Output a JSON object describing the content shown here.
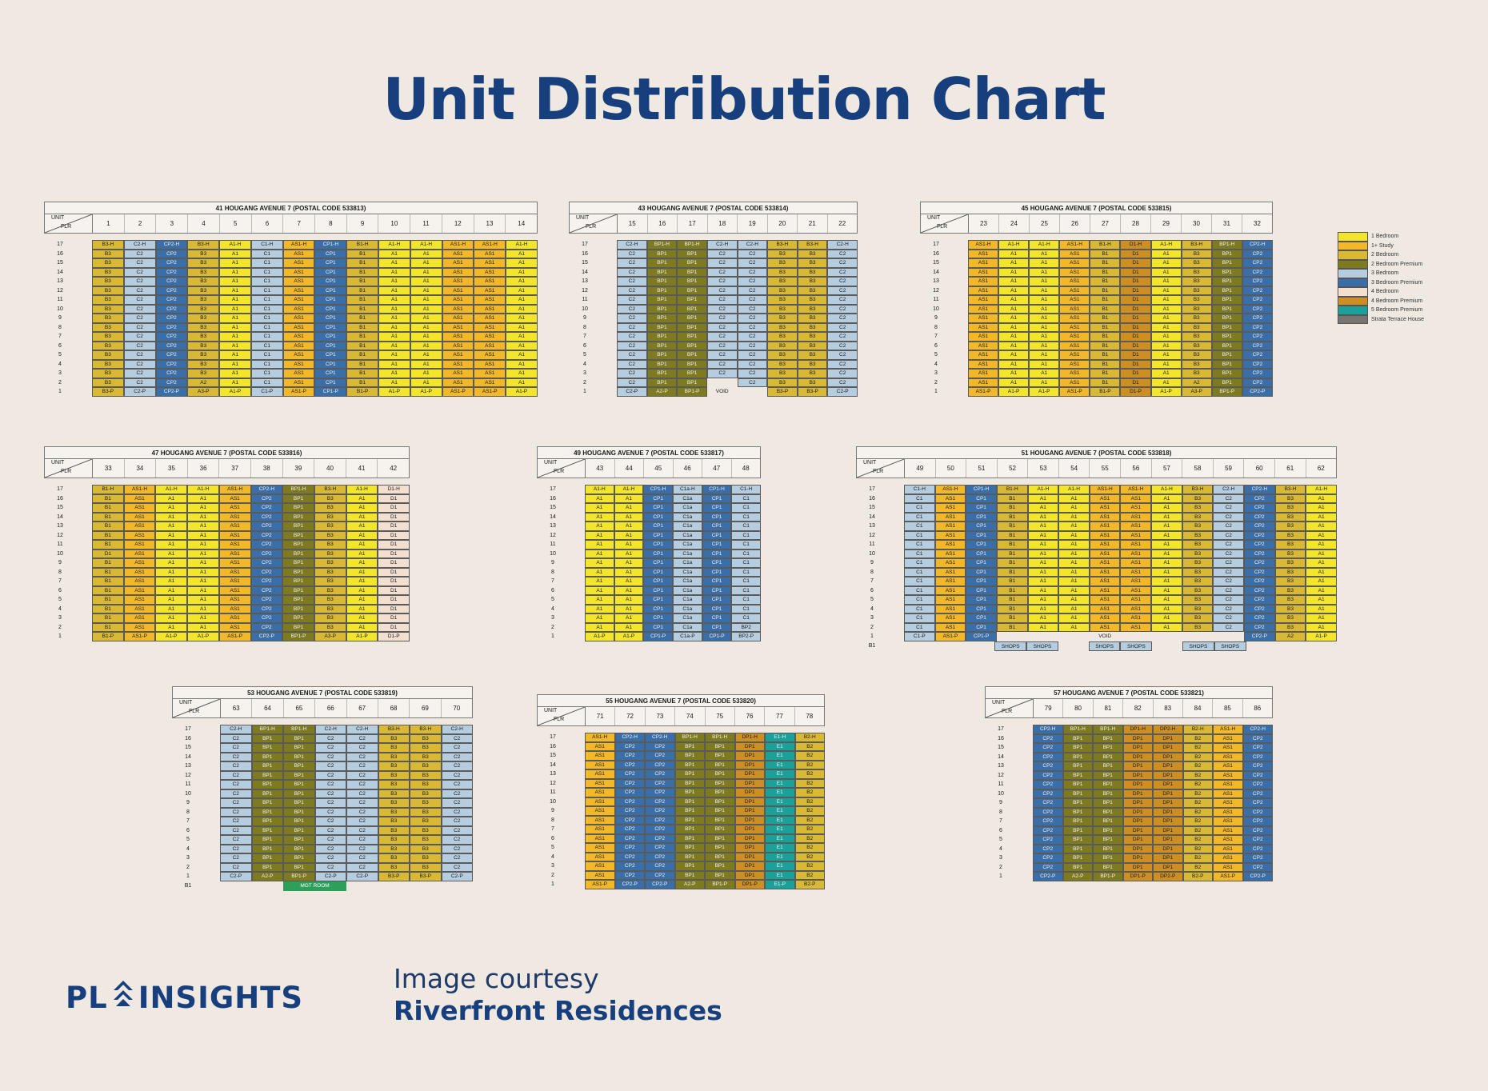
{
  "page": {
    "title": "Unit Distribution Chart",
    "brand": "PL INSIGHTS",
    "courtesy_line1": "Image courtesy",
    "courtesy_line2": "Riverfront Residences"
  },
  "colors": {
    "1BR": "#f3e529",
    "1ST": "#f2b827",
    "2BR": "#d9b833",
    "2BP": "#7e7a20",
    "3BR": "#b6cde0",
    "3BP": "#3a6ea8",
    "4BR": "#f3dfd0",
    "4BP": "#cd8f22",
    "5BP": "#1aa19a",
    "STH": "#787471",
    "VOID": "#efe9e1",
    "MGT": "#2e9e5b"
  },
  "chart_data": {
    "type": "table",
    "title": "Unit Distribution Chart",
    "corner_label_unit": "UNIT",
    "corner_label_floor": "FLR",
    "legend": [
      {
        "key": "1BR",
        "label": "1 Bedroom"
      },
      {
        "key": "1ST",
        "label": "1+ Study"
      },
      {
        "key": "2BR",
        "label": "2 Bedroom"
      },
      {
        "key": "2BP",
        "label": "2 Bedroom Premium"
      },
      {
        "key": "3BR",
        "label": "3 Bedroom"
      },
      {
        "key": "3BP",
        "label": "3 Bedroom Premium"
      },
      {
        "key": "4BR",
        "label": "4 Bedroom"
      },
      {
        "key": "4BP",
        "label": "4 Bedroom Premium"
      },
      {
        "key": "5BP",
        "label": "5 Bedroom Premium"
      },
      {
        "key": "STH",
        "label": "Strata Terrace House"
      }
    ],
    "blocks": [
      {
        "name": "41 HOUGANG AVENUE 7 (POSTAL CODE 533813)",
        "units": [
          "1",
          "2",
          "3",
          "4",
          "5",
          "6",
          "7",
          "8",
          "9",
          "10",
          "11",
          "12",
          "13",
          "14"
        ],
        "top": [
          "B3-H",
          "C2-H",
          "CP2-H",
          "B3-H",
          "A1-H",
          "C1-H",
          "AS1-H",
          "CP1-H",
          "B1-H",
          "A1-H",
          "A1-H",
          "AS1-H",
          "AS1-H",
          "A1-H"
        ],
        "typical": [
          "B3",
          "C2",
          "CP2",
          "B3",
          "A1",
          "C1",
          "AS1",
          "CP1",
          "B1",
          "A1",
          "A1",
          "AS1",
          "AS1",
          "A1"
        ],
        "bottom": [
          "B3-P",
          "C2-P",
          "CP2-P",
          "A3-P",
          "A1-P",
          "C1-P",
          "AS1-P",
          "CP1-P",
          "B1-P",
          "A1-P",
          "A1-P",
          "AS1-P",
          "AS1-P",
          "A1-P"
        ],
        "colors": [
          "2BR",
          "3BR",
          "3BP",
          "2BR",
          "1BR",
          "3BR",
          "1ST",
          "3BP",
          "2BR",
          "1BR",
          "1BR",
          "1ST",
          "1ST",
          "1BR"
        ],
        "overrides": [
          {
            "floor": 2,
            "col": 3,
            "v": "A2"
          }
        ]
      },
      {
        "name": "43 HOUGANG AVENUE 7 (POSTAL CODE 533814)",
        "units": [
          "15",
          "16",
          "17",
          "18",
          "19",
          "20",
          "21",
          "22"
        ],
        "top": [
          "C2-H",
          "BP1-H",
          "BP1-H",
          "C2-H",
          "C2-H",
          "B3-H",
          "B3-H",
          "C2-H"
        ],
        "typical": [
          "C2",
          "BP1",
          "BP1",
          "C2",
          "C2",
          "B3",
          "B3",
          "C2"
        ],
        "bottom": [
          "C2-P",
          "A2-P",
          "BP1-P",
          "VOID",
          "",
          "B3-P",
          "B3-P",
          "C2-P"
        ],
        "colors": [
          "3BR",
          "2BP",
          "2BP",
          "3BR",
          "3BR",
          "2BR",
          "2BR",
          "3BR"
        ],
        "overrides": [
          {
            "floor": 2,
            "col": 3,
            "v": ""
          }
        ]
      },
      {
        "name": "45 HOUGANG AVENUE 7 (POSTAL CODE 533815)",
        "units": [
          "23",
          "24",
          "25",
          "26",
          "27",
          "28",
          "29",
          "30",
          "31",
          "32"
        ],
        "top": [
          "AS1-H",
          "A1-H",
          "A1-H",
          "AS1-H",
          "B1-H",
          "D1-H",
          "A1-H",
          "B3-H",
          "BP1-H",
          "CP2-H"
        ],
        "typical": [
          "AS1",
          "A1",
          "A1",
          "AS1",
          "B1",
          "D1",
          "A1",
          "B3",
          "BP1",
          "CP2"
        ],
        "bottom": [
          "AS1-P",
          "A1-P",
          "A1-P",
          "AS1-P",
          "B1-P",
          "D1-P",
          "A1-P",
          "A3-P",
          "BP1-P",
          "CP2-P"
        ],
        "colors": [
          "1ST",
          "1BR",
          "1BR",
          "1ST",
          "2BR",
          "4BP",
          "1BR",
          "2BR",
          "2BP",
          "3BP"
        ],
        "overrides": [
          {
            "floor": 2,
            "col": 7,
            "v": "A2"
          }
        ]
      },
      {
        "name": "47 HOUGANG AVENUE 7 (POSTAL CODE 533816)",
        "units": [
          "33",
          "34",
          "35",
          "36",
          "37",
          "38",
          "39",
          "40",
          "41",
          "42"
        ],
        "top": [
          "B1-H",
          "AS1-H",
          "A1-H",
          "A1-H",
          "AS1-H",
          "CP2-H",
          "BP1-H",
          "B3-H",
          "A1-H",
          "D1-H"
        ],
        "typical": [
          "B1",
          "AS1",
          "A1",
          "A1",
          "AS1",
          "CP2",
          "BP1",
          "B3",
          "A1",
          "D1"
        ],
        "bottom": [
          "B1-P",
          "AS1-P",
          "A1-P",
          "A1-P",
          "AS1-P",
          "CP2-P",
          "BP1-P",
          "A3-P",
          "A1-P",
          "D1-P"
        ],
        "colors": [
          "2BR",
          "1ST",
          "1BR",
          "1BR",
          "1ST",
          "3BP",
          "2BP",
          "2BR",
          "1BR",
          "4BR"
        ],
        "overrides": [
          {
            "floor": 10,
            "col": 0,
            "v": "D1"
          }
        ]
      },
      {
        "name": "49 HOUGANG AVENUE 7 (POSTAL CODE 533817)",
        "units": [
          "43",
          "44",
          "45",
          "46",
          "47",
          "48"
        ],
        "top": [
          "A1-H",
          "A1-H",
          "CP1-H",
          "C1a-H",
          "CP1-H",
          "C1-H"
        ],
        "typical": [
          "A1",
          "A1",
          "CP1",
          "C1a",
          "CP1",
          "C1"
        ],
        "bottom": [
          "A1-P",
          "A1-P",
          "CP1-P",
          "C1a-P",
          "CP1-P",
          "BP2-P"
        ],
        "colors": [
          "1BR",
          "1BR",
          "3BP",
          "3BR",
          "3BP",
          "3BR"
        ],
        "overrides": [
          {
            "floor": 2,
            "col": 5,
            "v": "BP2"
          }
        ]
      },
      {
        "name": "51 HOUGANG AVENUE 7 (POSTAL CODE 533818)",
        "units": [
          "49",
          "50",
          "51",
          "52",
          "53",
          "54",
          "55",
          "56",
          "57",
          "58",
          "59",
          "60",
          "61",
          "62"
        ],
        "top": [
          "C1-H",
          "AS1-H",
          "CP1-H",
          "B1-H",
          "A1-H",
          "A1-H",
          "AS1-H",
          "AS1-H",
          "A1-H",
          "B3-H",
          "C2-H",
          "CP2-H",
          "B3-H",
          "A1-H"
        ],
        "typical": [
          "C1",
          "AS1",
          "CP1",
          "B1",
          "A1",
          "A1",
          "AS1",
          "AS1",
          "A1",
          "B3",
          "C2",
          "CP2",
          "B3",
          "A1"
        ],
        "bottom": [
          "C1-P",
          "AS1-P",
          "CP1-P",
          "",
          "",
          "",
          "VOID",
          "",
          "",
          "",
          "",
          "CP2-P",
          "A2",
          "A1-P"
        ],
        "colors": [
          "3BR",
          "1ST",
          "3BP",
          "2BR",
          "1BR",
          "1BR",
          "1ST",
          "1ST",
          "1BR",
          "2BR",
          "3BR",
          "3BP",
          "2BR",
          "1BR"
        ],
        "overrides": [],
        "extra_label": "B1",
        "extra": [
          "",
          "",
          "",
          "SHOPS",
          "SHOPS",
          "",
          "SHOPS",
          "SHOPS",
          "",
          "SHOPS",
          "SHOPS",
          "",
          "",
          ""
        ]
      },
      {
        "name": "53 HOUGANG AVENUE 7 (POSTAL CODE 533819)",
        "units": [
          "63",
          "64",
          "65",
          "66",
          "67",
          "68",
          "69",
          "70"
        ],
        "top": [
          "C2-H",
          "BP1-H",
          "BP1-H",
          "C2-H",
          "C2-H",
          "B3-H",
          "B3-H",
          "C2-H"
        ],
        "typical": [
          "C2",
          "BP1",
          "BP1",
          "C2",
          "C2",
          "B3",
          "B3",
          "C2"
        ],
        "bottom": [
          "C2-P",
          "A2-P",
          "BP1-P",
          "C2-P",
          "C2-P",
          "B3-P",
          "B3-P",
          "C2-P"
        ],
        "colors": [
          "3BR",
          "2BP",
          "2BP",
          "3BR",
          "3BR",
          "2BR",
          "2BR",
          "3BR"
        ],
        "overrides": [],
        "extra_label": "B1",
        "extra": [
          "",
          "",
          "MGT ROOM",
          "",
          "",
          "",
          "",
          ""
        ]
      },
      {
        "name": "55 HOUGANG AVENUE 7 (POSTAL CODE 533820)",
        "units": [
          "71",
          "72",
          "73",
          "74",
          "75",
          "76",
          "77",
          "78"
        ],
        "top": [
          "AS1-H",
          "CP2-H",
          "CP2-H",
          "BP1-H",
          "BP1-H",
          "DP1-H",
          "E1-H",
          "B2-H"
        ],
        "typical": [
          "AS1",
          "CP2",
          "CP2",
          "BP1",
          "BP1",
          "DP1",
          "E1",
          "B2"
        ],
        "bottom": [
          "AS1-P",
          "CP2-P",
          "CP2-P",
          "A2-P",
          "BP1-P",
          "DP1-P",
          "E1-P",
          "B2-P"
        ],
        "colors": [
          "1ST",
          "3BP",
          "3BP",
          "2BP",
          "2BP",
          "4BP",
          "5BP",
          "2BR"
        ],
        "overrides": []
      },
      {
        "name": "57 HOUGANG AVENUE 7 (POSTAL CODE 533821)",
        "units": [
          "79",
          "80",
          "81",
          "82",
          "83",
          "84",
          "85",
          "86"
        ],
        "top": [
          "CP2-H",
          "BP1-H",
          "BP1-H",
          "DP1-H",
          "DP2-H",
          "B2-H",
          "AS1-H",
          "CP2-H"
        ],
        "typical": [
          "CP2",
          "BP1",
          "BP1",
          "DP1",
          "DP1",
          "B2",
          "AS1",
          "CP2"
        ],
        "bottom": [
          "CP2-P",
          "A2-P",
          "BP1-P",
          "DP1-P",
          "DP2-P",
          "B2-P",
          "AS1-P",
          "CP2-P"
        ],
        "colors": [
          "3BP",
          "2BP",
          "2BP",
          "4BP",
          "4BP",
          "2BR",
          "1ST",
          "3BP"
        ],
        "overrides": []
      }
    ]
  }
}
